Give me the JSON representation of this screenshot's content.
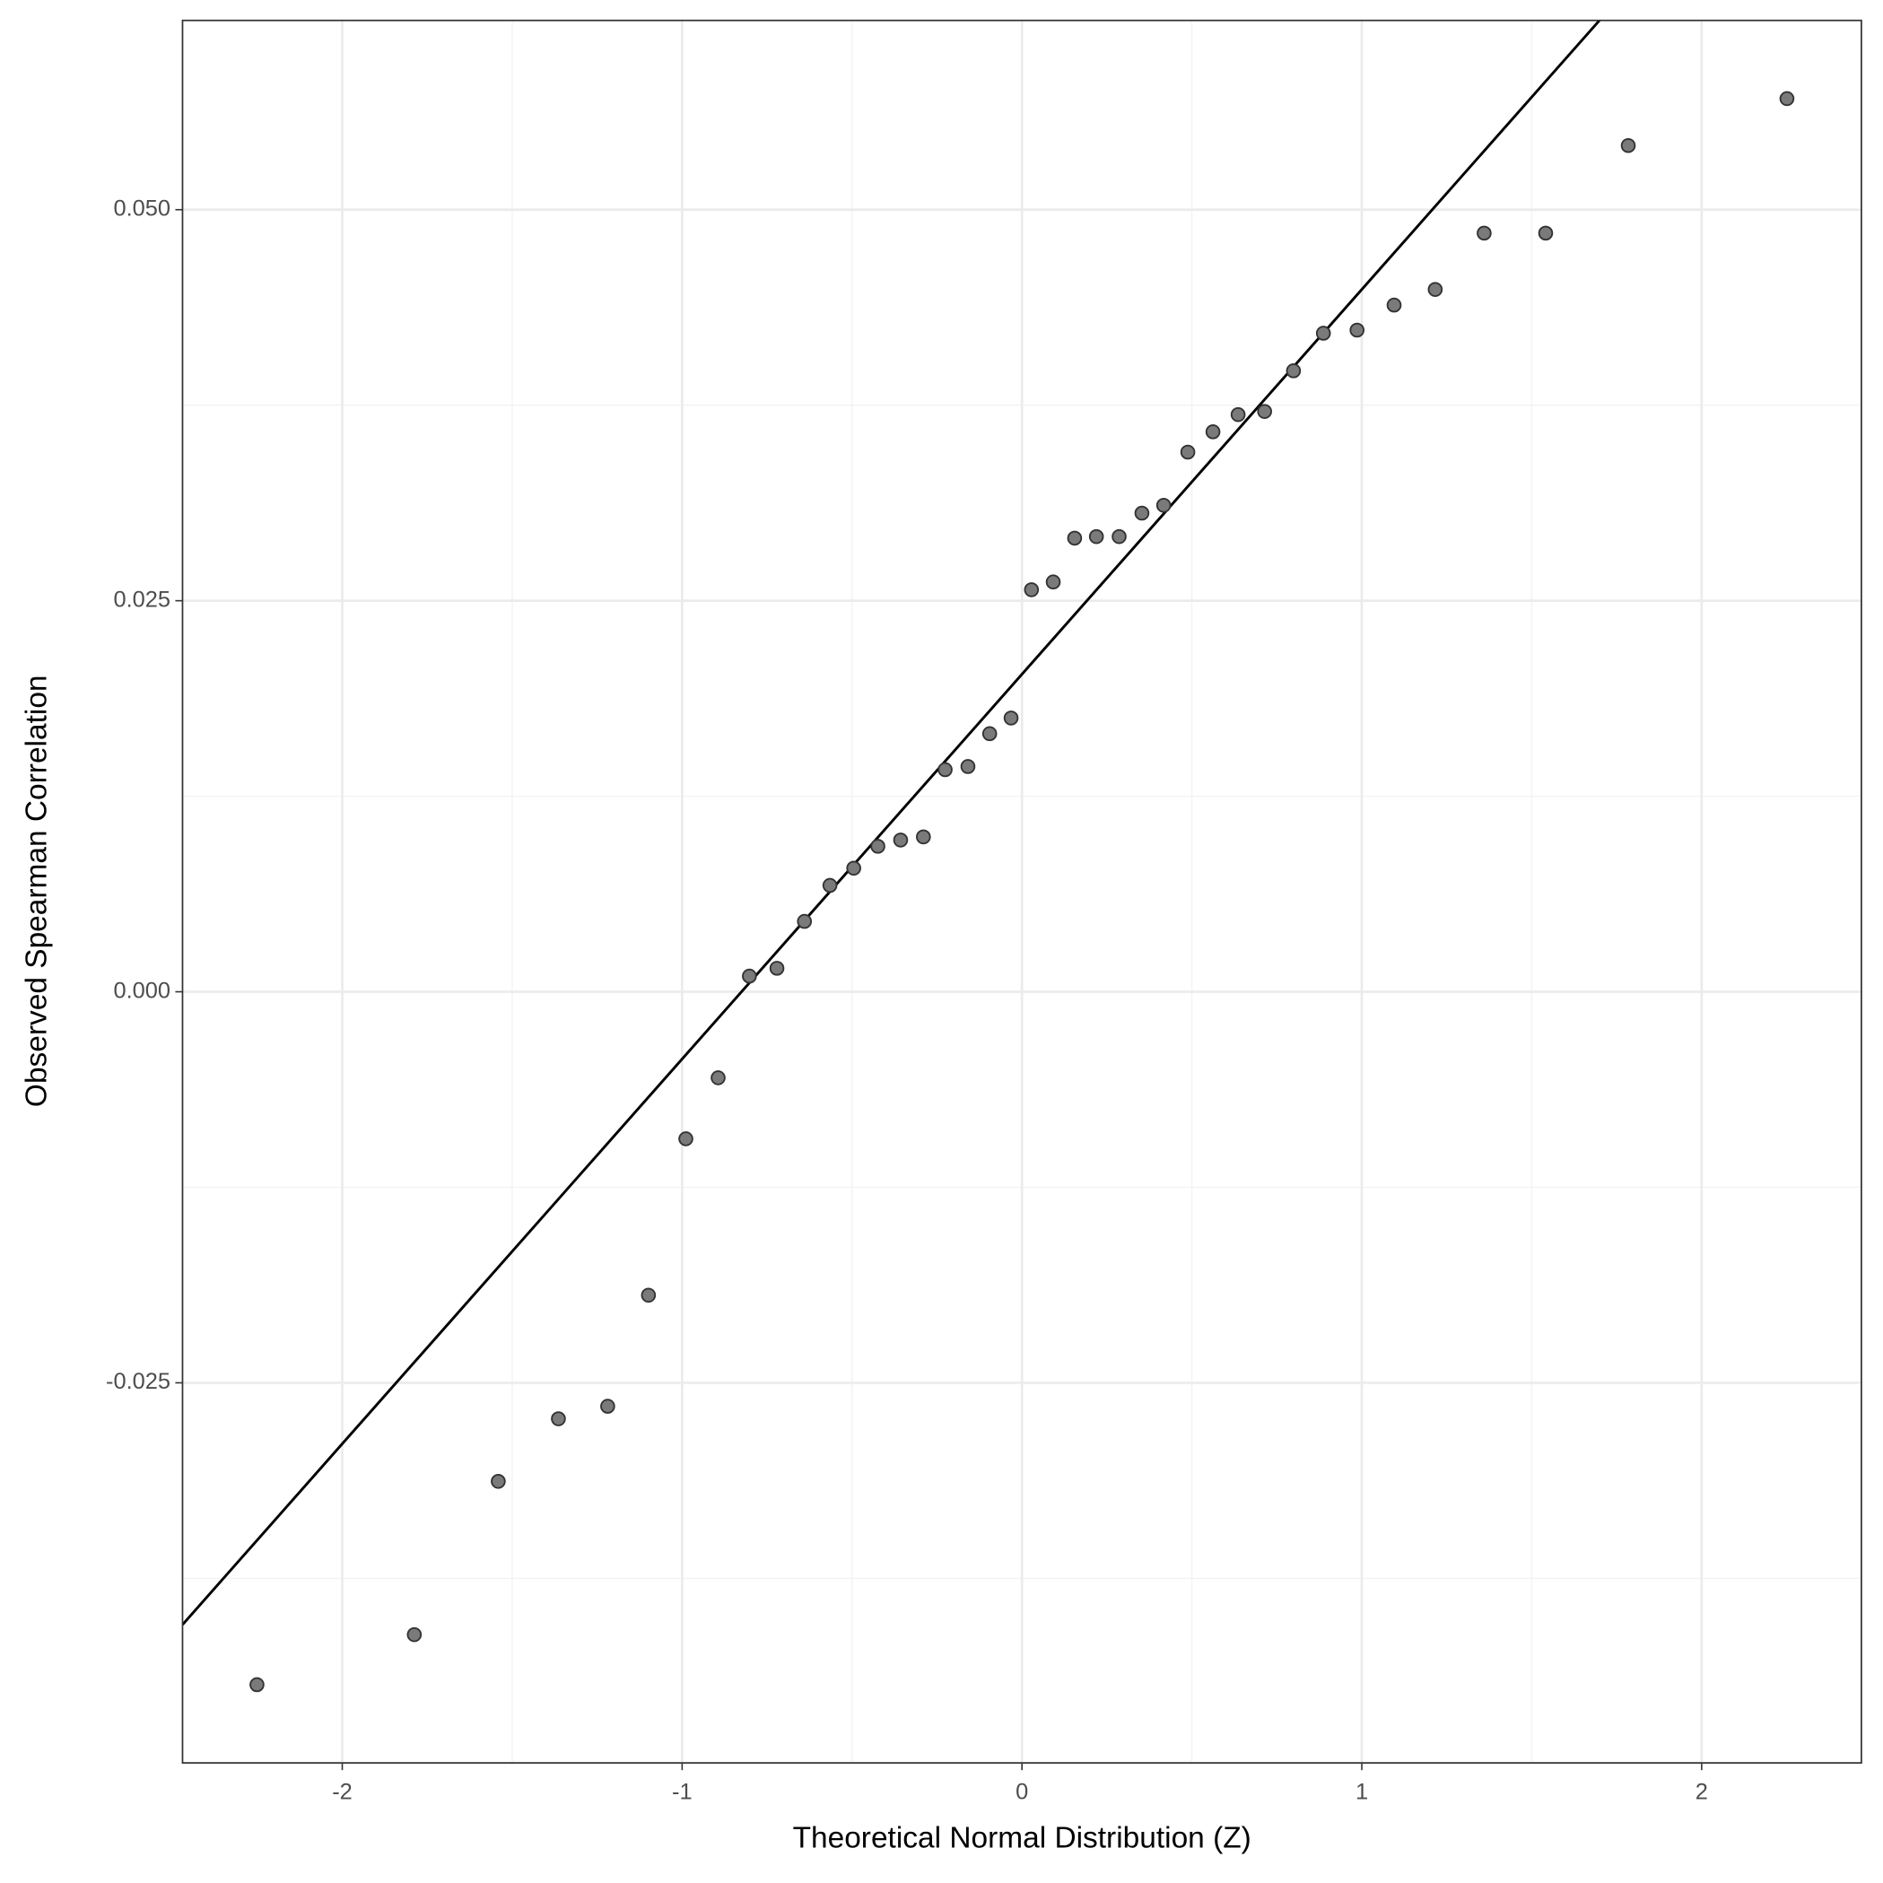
{
  "chart_data": {
    "type": "scatter",
    "x_label": "Theoretical Normal Distribution (Z)",
    "y_label": "Observed Spearman Correlation",
    "color": "#7a7a7a",
    "grid": true,
    "xlim": [
      -2.47,
      2.47
    ],
    "ylim": [
      -0.0493,
      0.0621
    ],
    "xticks": [
      -2,
      -1,
      0,
      1,
      2
    ],
    "yticks": [
      {
        "value": -0.025,
        "label": "-0.025"
      },
      {
        "value": 0,
        "label": "0.000"
      },
      {
        "value": 0.025,
        "label": "0.025"
      },
      {
        "value": 0.05,
        "label": "0.050"
      }
    ],
    "reference_line": {
      "intercept": 0.0203,
      "slope": 0.0246
    },
    "x": [
      -2.251,
      -1.788,
      -1.541,
      -1.364,
      -1.219,
      -1.099,
      -0.989,
      -0.894,
      -0.802,
      -0.721,
      -0.64,
      -0.565,
      -0.495,
      -0.424,
      -0.357,
      -0.29,
      -0.226,
      -0.159,
      -0.095,
      -0.032,
      0.028,
      0.092,
      0.155,
      0.219,
      0.286,
      0.353,
      0.417,
      0.488,
      0.562,
      0.636,
      0.714,
      0.799,
      0.887,
      0.986,
      1.095,
      1.216,
      1.36,
      1.541,
      1.784,
      2.251
    ],
    "values": [
      -0.0443,
      -0.0411,
      -0.0313,
      -0.0273,
      -0.0265,
      -0.0194,
      -0.0094,
      -0.0055,
      0.001,
      0.0015,
      0.0045,
      0.0068,
      0.0079,
      0.0093,
      0.0097,
      0.0099,
      0.0142,
      0.0144,
      0.0165,
      0.0175,
      0.0257,
      0.0262,
      0.029,
      0.0291,
      0.0291,
      0.0306,
      0.0311,
      0.0345,
      0.0358,
      0.0369,
      0.0371,
      0.0397,
      0.0421,
      0.0423,
      0.0439,
      0.0449,
      0.0485,
      0.0485,
      0.0541,
      0.0571
    ]
  }
}
